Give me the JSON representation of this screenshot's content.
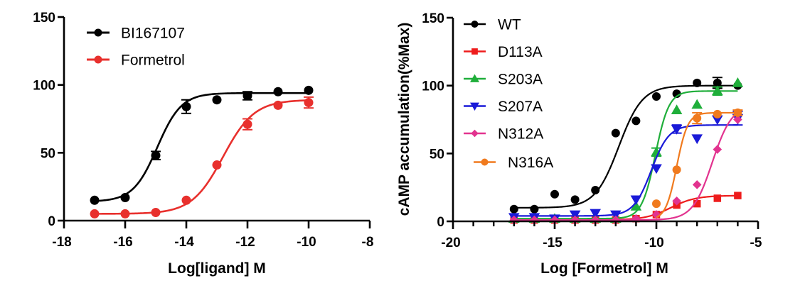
{
  "chart_data": [
    {
      "type": "scatter",
      "subtype": "dose-response",
      "title": "",
      "xlabel": "Log[ligand] M",
      "ylabel": "",
      "xlim": [
        -18,
        -8
      ],
      "ylim": [
        0,
        150
      ],
      "xticks": [
        "-18",
        "-16",
        "-14",
        "-12",
        "-10",
        "-8"
      ],
      "xtick_values": [
        -18,
        -16,
        -14,
        -12,
        -10,
        -8
      ],
      "yticks": [
        "0",
        "50",
        "100",
        "150"
      ],
      "ytick_values": [
        0,
        50,
        100,
        150
      ],
      "grid": false,
      "legend_position": "top-left",
      "x": [
        -17,
        -16,
        -15,
        -14,
        -13,
        -12,
        -11,
        -10
      ],
      "series": [
        {
          "name": "BI167107",
          "color": "#000000",
          "marker": "circle",
          "values": [
            15,
            17,
            48,
            84,
            89,
            92,
            95,
            96
          ],
          "errors": [
            0,
            0,
            3,
            5,
            0,
            3,
            0,
            0
          ],
          "fit": {
            "bottom": 14,
            "top": 94,
            "logEC50": -14.95,
            "hill": 1.1
          }
        },
        {
          "name": "Formetrol",
          "color": "#e8302d",
          "marker": "circle",
          "values": [
            5,
            5,
            6,
            15,
            41,
            71,
            85,
            87
          ],
          "errors": [
            0,
            0,
            0,
            0,
            0,
            4,
            0,
            4
          ],
          "fit": {
            "bottom": 5,
            "top": 89,
            "logEC50": -12.8,
            "hill": 0.85
          }
        }
      ]
    },
    {
      "type": "scatter",
      "subtype": "dose-response",
      "title": "",
      "xlabel": "Log [Formetrol] M",
      "ylabel": "cAMP accumulation(%Max)",
      "xlim": [
        -20,
        -5
      ],
      "ylim": [
        0,
        150
      ],
      "xticks": [
        "-20",
        "-15",
        "-10",
        "-5"
      ],
      "xtick_values": [
        -20,
        -15,
        -10,
        -5
      ],
      "xminor_step": 1,
      "yticks": [
        "0",
        "50",
        "100",
        "150"
      ],
      "ytick_values": [
        0,
        50,
        100,
        150
      ],
      "grid": false,
      "legend_position": "top-left",
      "x": [
        -17,
        -16,
        -15,
        -14,
        -13,
        -12,
        -11,
        -10,
        -9,
        -8,
        -7,
        -6
      ],
      "series": [
        {
          "name": "WT",
          "color": "#000000",
          "marker": "circle",
          "values": [
            9,
            9,
            20,
            16,
            23,
            65,
            74,
            92,
            94,
            102,
            102,
            100
          ],
          "errors": [
            0,
            0,
            0,
            0,
            0,
            0,
            0,
            0,
            0,
            0,
            4,
            0
          ],
          "fit": {
            "bottom": 10,
            "top": 100,
            "logEC50": -11.85,
            "hill": 0.75
          }
        },
        {
          "name": "D113A",
          "color": "#ee1c1c",
          "marker": "square",
          "values": [
            1,
            1,
            1,
            1,
            1,
            1,
            2,
            5,
            12,
            13,
            17,
            19
          ],
          "errors": [
            0,
            0,
            0,
            0,
            0,
            0,
            0,
            0,
            0,
            0,
            0,
            0
          ],
          "fit": {
            "bottom": 1,
            "top": 19,
            "logEC50": -9.3,
            "hill": 0.7
          }
        },
        {
          "name": "S203A",
          "color": "#1fae3a",
          "marker": "triangle-up",
          "values": [
            2,
            2,
            2,
            2,
            2,
            2,
            11,
            51,
            82,
            86,
            96,
            102
          ],
          "errors": [
            0,
            0,
            0,
            0,
            0,
            0,
            0,
            3,
            0,
            0,
            3,
            0
          ],
          "fit": {
            "bottom": 2,
            "top": 96,
            "logEC50": -10.05,
            "hill": 1.3
          }
        },
        {
          "name": "S207A",
          "color": "#1a1ad8",
          "marker": "triangle-down",
          "values": [
            3,
            3,
            2,
            5,
            6,
            5,
            16,
            39,
            68,
            61,
            75,
            76
          ],
          "errors": [
            0,
            0,
            0,
            0,
            0,
            0,
            0,
            0,
            3,
            0,
            0,
            5
          ],
          "fit": {
            "bottom": 4,
            "top": 71,
            "logEC50": -10.25,
            "hill": 1.0
          }
        },
        {
          "name": "N312A",
          "color": "#e2338f",
          "marker": "diamond",
          "values": [
            1,
            1,
            1,
            1,
            1,
            1,
            2,
            5,
            15,
            27,
            53,
            75
          ],
          "errors": [
            0,
            0,
            0,
            0,
            0,
            0,
            0,
            0,
            0,
            0,
            0,
            0
          ],
          "fit": {
            "bottom": 1,
            "top": 86,
            "logEC50": -7.25,
            "hill": 0.9
          }
        },
        {
          "name": "N316A",
          "color": "#f07a1e",
          "marker": "circle",
          "values": [
            null,
            null,
            null,
            null,
            null,
            null,
            null,
            13,
            38,
            76,
            79,
            80
          ],
          "errors": [
            0,
            0,
            0,
            0,
            0,
            0,
            0,
            0,
            0,
            4,
            0,
            2
          ],
          "fit": {
            "bottom": 1,
            "top": 80,
            "logEC50": -9.0,
            "hill": 1.6
          }
        }
      ]
    }
  ]
}
